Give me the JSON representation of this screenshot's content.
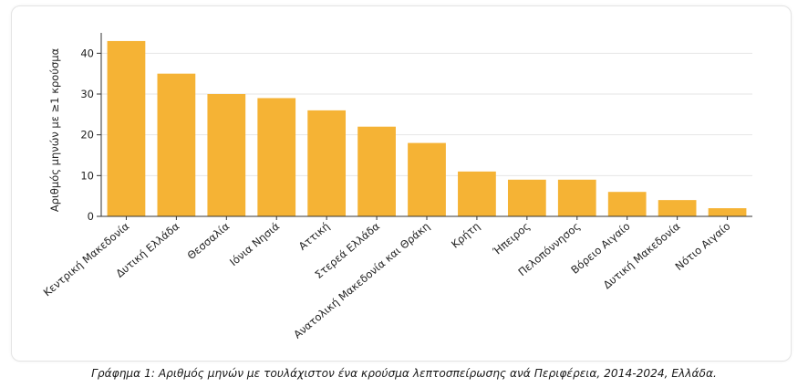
{
  "chart_data": {
    "type": "bar",
    "categories": [
      "Κεντρική Μακεδονία",
      "Δυτική Ελλάδα",
      "Θεσσαλία",
      "Ιόνια Νησιά",
      "Αττική",
      "Στερεά Ελλάδα",
      "Ανατολική Μακεδονία και Θράκη",
      "Κρήτη",
      "Ήπειρος",
      "Πελοπόννησος",
      "Βόρειο Αιγαίο",
      "Δυτική Μακεδονία",
      "Νότιο Αιγαίο"
    ],
    "values": [
      43,
      35,
      30,
      29,
      26,
      22,
      18,
      11,
      9,
      9,
      6,
      4,
      2
    ],
    "ylabel": "Αριθμός μηνών με ≥1 κρούσμα",
    "xlabel": "",
    "ylim": [
      0,
      45
    ],
    "yticks": [
      0,
      10,
      20,
      30,
      40
    ],
    "grid": true,
    "bar_color": "#F5B335"
  },
  "caption": "Γράφημα 1: Αριθμός μηνών με τουλάχιστον ένα κρούσμα λεπτοσπείρωσης ανά Περιφέρεια, 2014-2024, Ελλάδα."
}
